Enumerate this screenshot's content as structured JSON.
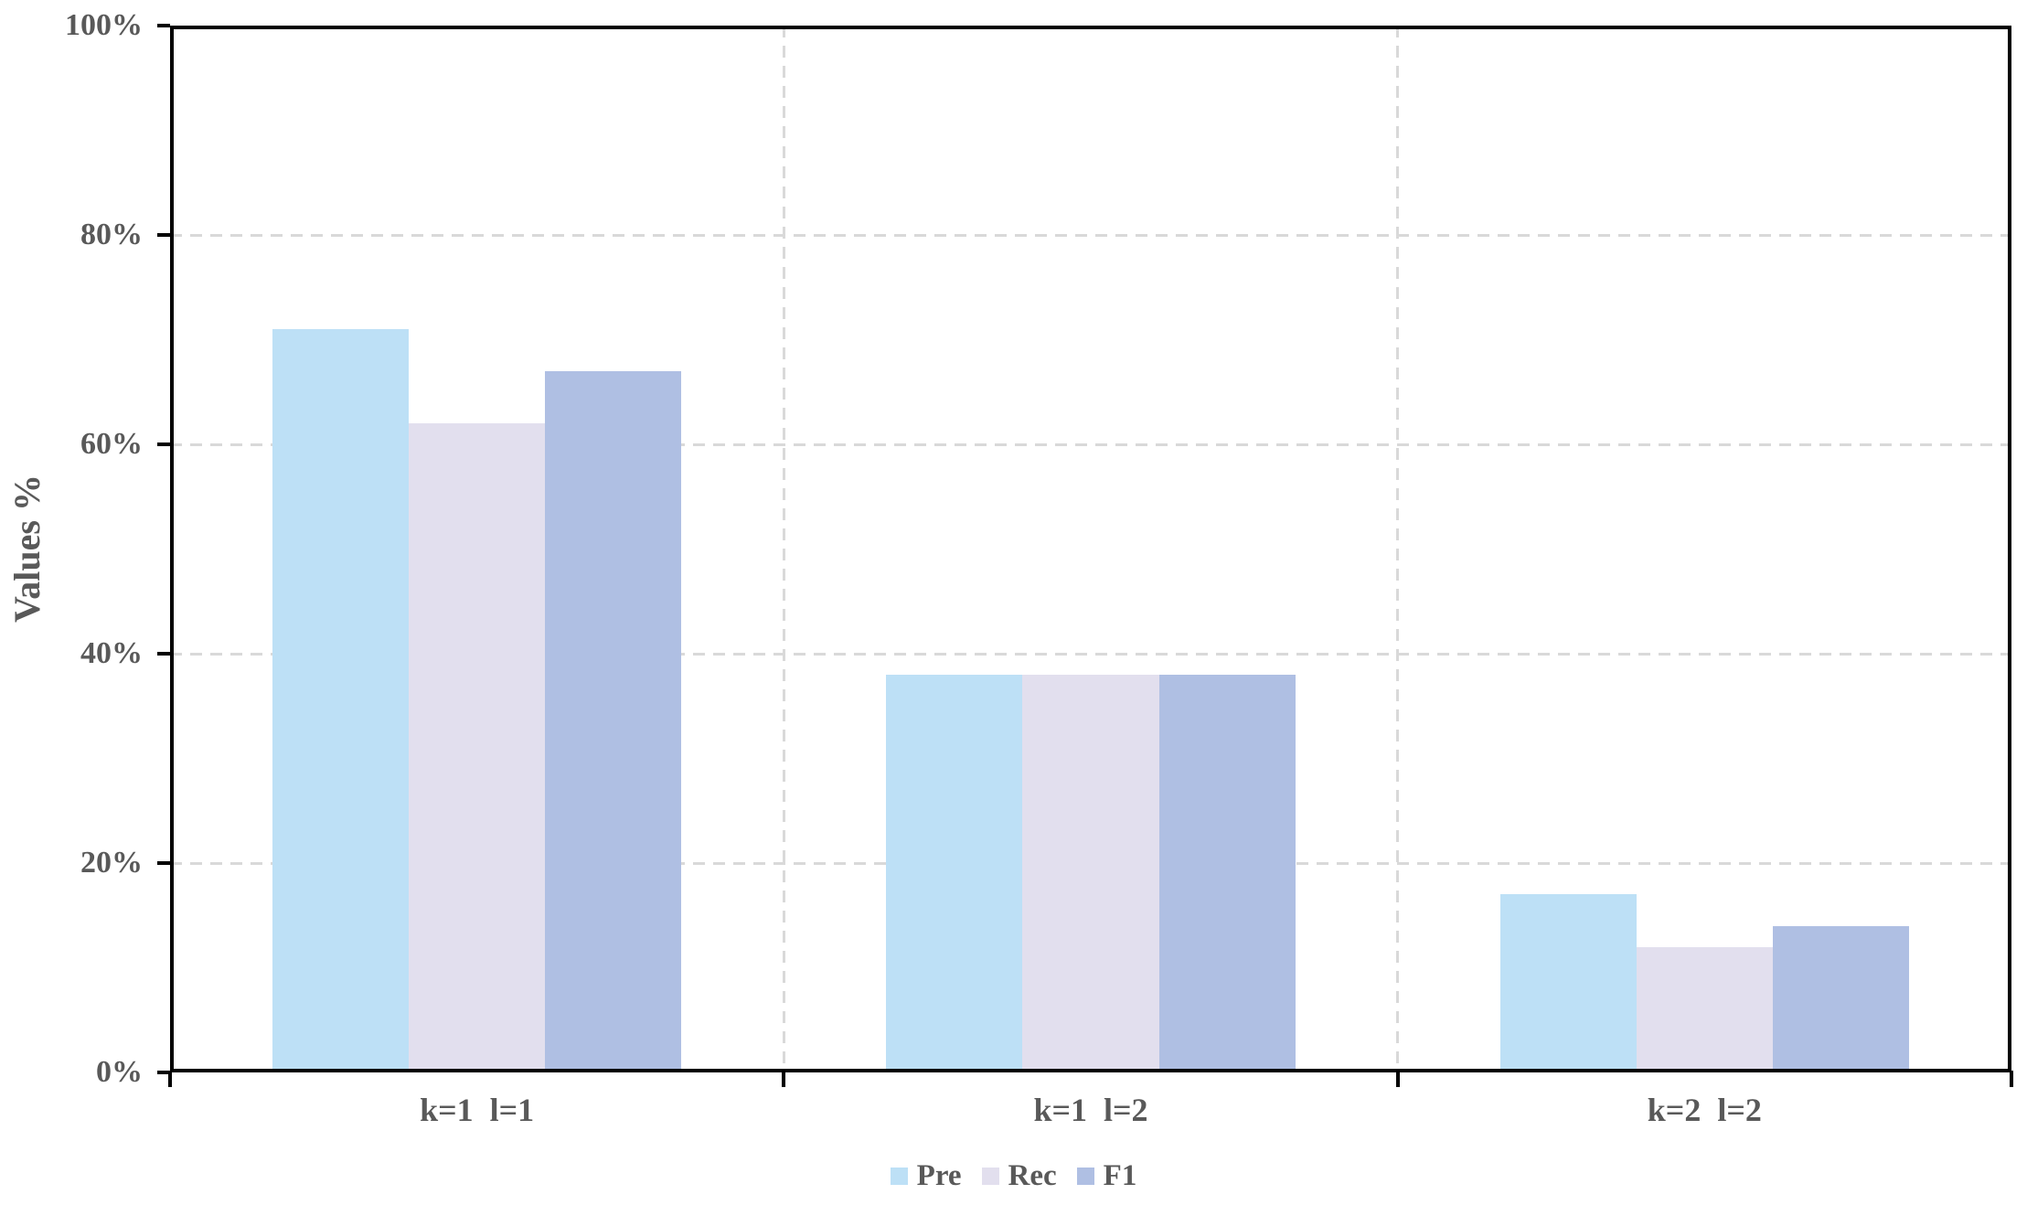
{
  "chart_data": {
    "type": "bar",
    "title": "",
    "xlabel": "",
    "ylabel": "Values %",
    "categories": [
      "k=1  l=1",
      "k=1  l=2",
      "k=2  l=2"
    ],
    "series": [
      {
        "name": "Pre",
        "color": "#BDE0F6",
        "values": [
          71,
          38,
          17
        ]
      },
      {
        "name": "Rec",
        "color": "#E2DFEE",
        "values": [
          62,
          38,
          12
        ]
      },
      {
        "name": "F1",
        "color": "#AFBFE3",
        "values": [
          67,
          38,
          14
        ]
      }
    ],
    "ylim": [
      0,
      100
    ],
    "yticks": [
      0,
      20,
      40,
      60,
      80,
      100
    ],
    "ytick_labels": [
      "0%",
      "20%",
      "40%",
      "60%",
      "80%",
      "100%"
    ],
    "grid": "dashed horizontal gridlines at each 20% plus dashed vertical category separators",
    "legend_position": "bottom-center",
    "unit": "%"
  },
  "style": {
    "bar_colors": {
      "Pre": "#BDE0F6",
      "Rec": "#E2DFEE",
      "F1": "#AFBFE3"
    },
    "text_color": "#595959",
    "axis_color": "#000000",
    "gridline_color": "#D9D9D9",
    "background": "#FFFFFF"
  }
}
